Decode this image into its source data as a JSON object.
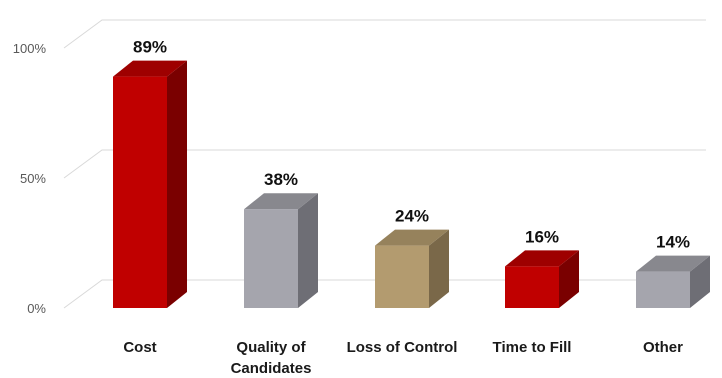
{
  "chart_data": {
    "type": "bar",
    "title": "",
    "xlabel": "",
    "ylabel": "",
    "categories": [
      "Cost",
      "Quality of Candidates",
      "Loss of Control",
      "Time to Fill",
      "Other"
    ],
    "category_lines": [
      [
        "Cost"
      ],
      [
        "Quality of",
        "Candidates"
      ],
      [
        "Loss of Control"
      ],
      [
        "Time to Fill"
      ],
      [
        "Other"
      ]
    ],
    "values": [
      89,
      38,
      24,
      16,
      14
    ],
    "value_labels": [
      "89%",
      "38%",
      "24%",
      "16%",
      "14%"
    ],
    "ylim": [
      0,
      100
    ],
    "y_ticks": [
      0,
      50,
      100
    ],
    "y_tick_labels": [
      "0%",
      "50%",
      "100%"
    ],
    "grid": true,
    "legend": "none",
    "three_d": true,
    "colors": [
      {
        "front": "#c00000",
        "side": "#7a0000",
        "top": "#9e0000"
      },
      {
        "front": "#a5a5ad",
        "side": "#6e6e75",
        "top": "#88888e"
      },
      {
        "front": "#b39b6f",
        "side": "#7a6849",
        "top": "#96825c"
      },
      {
        "front": "#c00000",
        "side": "#7a0000",
        "top": "#9e0000"
      },
      {
        "front": "#a5a5ad",
        "side": "#6e6e75",
        "top": "#88888e"
      }
    ],
    "gridline_color": "#d9d9d9"
  }
}
